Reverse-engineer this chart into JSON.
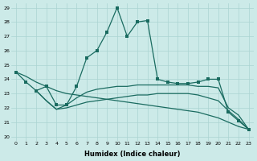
{
  "xlabel": "Humidex (Indice chaleur)",
  "bg_color": "#cceae8",
  "grid_color": "#aad4d2",
  "line_color": "#1a6b60",
  "xlim": [
    -0.5,
    23.5
  ],
  "ylim": [
    19.7,
    29.3
  ],
  "yticks": [
    20,
    21,
    22,
    23,
    24,
    25,
    26,
    27,
    28,
    29
  ],
  "xticks": [
    0,
    1,
    2,
    3,
    4,
    5,
    6,
    7,
    8,
    9,
    10,
    11,
    12,
    13,
    14,
    15,
    16,
    17,
    18,
    19,
    20,
    21,
    22,
    23
  ],
  "series1": [
    [
      0,
      24.5
    ],
    [
      1,
      23.8
    ],
    [
      2,
      23.2
    ],
    [
      3,
      23.5
    ],
    [
      4,
      22.2
    ],
    [
      5,
      22.2
    ],
    [
      6,
      23.5
    ],
    [
      7,
      25.5
    ],
    [
      8,
      26.0
    ],
    [
      9,
      27.3
    ],
    [
      10,
      29.0
    ],
    [
      11,
      27.0
    ],
    [
      12,
      28.0
    ],
    [
      13,
      28.1
    ],
    [
      14,
      24.0
    ],
    [
      15,
      23.8
    ],
    [
      16,
      23.7
    ],
    [
      17,
      23.7
    ],
    [
      18,
      23.8
    ],
    [
      19,
      24.0
    ],
    [
      20,
      24.0
    ],
    [
      21,
      21.7
    ],
    [
      22,
      21.1
    ],
    [
      23,
      20.5
    ]
  ],
  "series2": [
    [
      2,
      23.2
    ],
    [
      3,
      22.5
    ],
    [
      4,
      21.9
    ],
    [
      5,
      22.2
    ],
    [
      6,
      22.7
    ],
    [
      7,
      23.1
    ],
    [
      8,
      23.3
    ],
    [
      9,
      23.4
    ],
    [
      10,
      23.5
    ],
    [
      11,
      23.5
    ],
    [
      12,
      23.6
    ],
    [
      13,
      23.6
    ],
    [
      14,
      23.6
    ],
    [
      15,
      23.6
    ],
    [
      16,
      23.6
    ],
    [
      17,
      23.6
    ],
    [
      18,
      23.5
    ],
    [
      19,
      23.5
    ],
    [
      20,
      23.4
    ],
    [
      21,
      22.0
    ],
    [
      22,
      21.5
    ],
    [
      23,
      20.5
    ]
  ],
  "series3": [
    [
      2,
      23.2
    ],
    [
      3,
      22.5
    ],
    [
      4,
      21.9
    ],
    [
      5,
      22.0
    ],
    [
      6,
      22.2
    ],
    [
      7,
      22.4
    ],
    [
      8,
      22.5
    ],
    [
      9,
      22.6
    ],
    [
      10,
      22.7
    ],
    [
      11,
      22.8
    ],
    [
      12,
      22.9
    ],
    [
      13,
      22.9
    ],
    [
      14,
      23.0
    ],
    [
      15,
      23.0
    ],
    [
      16,
      23.0
    ],
    [
      17,
      23.0
    ],
    [
      18,
      22.9
    ],
    [
      19,
      22.7
    ],
    [
      20,
      22.5
    ],
    [
      21,
      21.8
    ],
    [
      22,
      21.2
    ],
    [
      23,
      20.5
    ]
  ],
  "series4": [
    [
      0,
      24.5
    ],
    [
      1,
      24.2
    ],
    [
      2,
      23.8
    ],
    [
      3,
      23.5
    ],
    [
      4,
      23.2
    ],
    [
      5,
      23.0
    ],
    [
      6,
      22.9
    ],
    [
      7,
      22.8
    ],
    [
      8,
      22.7
    ],
    [
      9,
      22.6
    ],
    [
      10,
      22.5
    ],
    [
      11,
      22.4
    ],
    [
      12,
      22.3
    ],
    [
      13,
      22.2
    ],
    [
      14,
      22.1
    ],
    [
      15,
      22.0
    ],
    [
      16,
      21.9
    ],
    [
      17,
      21.8
    ],
    [
      18,
      21.7
    ],
    [
      19,
      21.5
    ],
    [
      20,
      21.3
    ],
    [
      21,
      21.0
    ],
    [
      22,
      20.7
    ],
    [
      23,
      20.5
    ]
  ]
}
